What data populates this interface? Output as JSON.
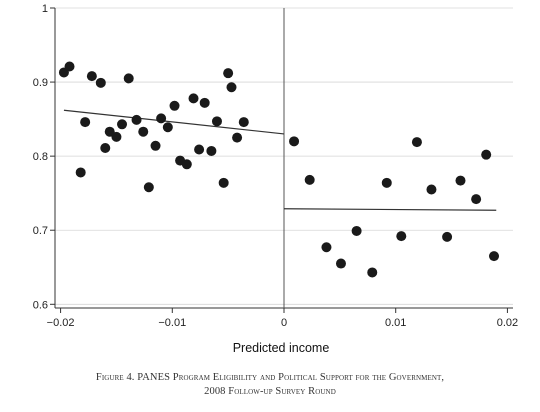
{
  "chart_data": {
    "type": "scatter",
    "title": "",
    "xlabel": "Predicted income",
    "ylabel": "",
    "xlim": [
      -0.0205,
      0.0205
    ],
    "ylim": [
      0.595,
      1.0
    ],
    "xticks": [
      -0.02,
      -0.01,
      0,
      0.01,
      0.02
    ],
    "xtick_labels": [
      "−0.02",
      "−0.01",
      "0",
      "0.01",
      "0.02"
    ],
    "yticks": [
      0.6,
      0.7,
      0.8,
      0.9,
      1.0
    ],
    "ytick_labels": [
      "0.6",
      "0.7",
      "0.8",
      "0.9",
      "1"
    ],
    "grid": "horizontal",
    "cutoff_x": 0,
    "points": [
      {
        "x": -0.0197,
        "y": 0.913
      },
      {
        "x": -0.0192,
        "y": 0.921
      },
      {
        "x": -0.0182,
        "y": 0.778
      },
      {
        "x": -0.0178,
        "y": 0.846
      },
      {
        "x": -0.0172,
        "y": 0.908
      },
      {
        "x": -0.0164,
        "y": 0.899
      },
      {
        "x": -0.016,
        "y": 0.811
      },
      {
        "x": -0.0156,
        "y": 0.833
      },
      {
        "x": -0.015,
        "y": 0.826
      },
      {
        "x": -0.0145,
        "y": 0.843
      },
      {
        "x": -0.0139,
        "y": 0.905
      },
      {
        "x": -0.0132,
        "y": 0.849
      },
      {
        "x": -0.0126,
        "y": 0.833
      },
      {
        "x": -0.0121,
        "y": 0.758
      },
      {
        "x": -0.0115,
        "y": 0.814
      },
      {
        "x": -0.011,
        "y": 0.851
      },
      {
        "x": -0.0104,
        "y": 0.839
      },
      {
        "x": -0.0098,
        "y": 0.868
      },
      {
        "x": -0.0093,
        "y": 0.794
      },
      {
        "x": -0.0087,
        "y": 0.789
      },
      {
        "x": -0.0081,
        "y": 0.878
      },
      {
        "x": -0.0076,
        "y": 0.809
      },
      {
        "x": -0.0071,
        "y": 0.872
      },
      {
        "x": -0.0065,
        "y": 0.807
      },
      {
        "x": -0.006,
        "y": 0.847
      },
      {
        "x": -0.0054,
        "y": 0.764
      },
      {
        "x": -0.005,
        "y": 0.912
      },
      {
        "x": -0.0047,
        "y": 0.893
      },
      {
        "x": -0.0042,
        "y": 0.825
      },
      {
        "x": -0.0036,
        "y": 0.846
      },
      {
        "x": 0.0009,
        "y": 0.82
      },
      {
        "x": 0.0023,
        "y": 0.768
      },
      {
        "x": 0.0038,
        "y": 0.677
      },
      {
        "x": 0.0051,
        "y": 0.655
      },
      {
        "x": 0.0065,
        "y": 0.699
      },
      {
        "x": 0.0079,
        "y": 0.643
      },
      {
        "x": 0.0092,
        "y": 0.764
      },
      {
        "x": 0.0105,
        "y": 0.692
      },
      {
        "x": 0.0119,
        "y": 0.819
      },
      {
        "x": 0.0132,
        "y": 0.755
      },
      {
        "x": 0.0146,
        "y": 0.691
      },
      {
        "x": 0.0158,
        "y": 0.767
      },
      {
        "x": 0.0172,
        "y": 0.742
      },
      {
        "x": 0.0181,
        "y": 0.802
      },
      {
        "x": 0.0188,
        "y": 0.665
      }
    ],
    "fit_lines": [
      {
        "x": [
          -0.0197,
          0.0
        ],
        "y": [
          0.862,
          0.83
        ]
      },
      {
        "x": [
          0.0,
          0.019
        ],
        "y": [
          0.729,
          0.727
        ]
      }
    ]
  },
  "caption": {
    "line1": "Figure 4. PANES Program Eligibility and Political Support for the Government,",
    "line2": "2008 Follow-up Survey Round"
  }
}
